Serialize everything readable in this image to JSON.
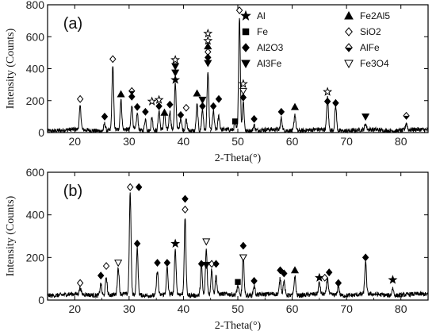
{
  "chart_data": [
    {
      "type": "line",
      "panel_label": "(a)",
      "xlabel": "2-Theta(°)",
      "ylabel": "Intensity (Counts)",
      "xlim": [
        15,
        85
      ],
      "ylim": [
        0,
        800
      ],
      "xticks": [
        20,
        30,
        40,
        50,
        60,
        70,
        80
      ],
      "yticks": [
        0,
        200,
        400,
        600,
        800
      ],
      "grid": false,
      "legend_position": "top-right",
      "legend": [
        {
          "name": "Al",
          "marker": "star-filled"
        },
        {
          "name": "Fe2Al5",
          "marker": "triangle-up"
        },
        {
          "name": "Fe",
          "marker": "square"
        },
        {
          "name": "SiO2",
          "marker": "diamond-open"
        },
        {
          "name": "Al2O3",
          "marker": "diamond-filled"
        },
        {
          "name": "AlFe",
          "marker": "diamond-half"
        },
        {
          "name": "Al3Fe",
          "marker": "triangle-down"
        },
        {
          "name": "Fe3O4",
          "marker": "triangle-down-open"
        }
      ],
      "baseline": 15,
      "peaks": [
        {
          "x": 21.0,
          "y": 160
        },
        {
          "x": 25.5,
          "y": 60
        },
        {
          "x": 27.0,
          "y": 420
        },
        {
          "x": 28.5,
          "y": 200
        },
        {
          "x": 30.5,
          "y": 175
        },
        {
          "x": 31.5,
          "y": 120
        },
        {
          "x": 33.0,
          "y": 90
        },
        {
          "x": 34.2,
          "y": 100
        },
        {
          "x": 35.5,
          "y": 140
        },
        {
          "x": 36.5,
          "y": 120
        },
        {
          "x": 37.5,
          "y": 130
        },
        {
          "x": 38.5,
          "y": 300
        },
        {
          "x": 39.5,
          "y": 90
        },
        {
          "x": 40.5,
          "y": 80
        },
        {
          "x": 42.5,
          "y": 180
        },
        {
          "x": 43.5,
          "y": 150
        },
        {
          "x": 44.5,
          "y": 380
        },
        {
          "x": 45.5,
          "y": 130
        },
        {
          "x": 46.5,
          "y": 100
        },
        {
          "x": 49.5,
          "y": 60
        },
        {
          "x": 50.3,
          "y": 730
        },
        {
          "x": 51.0,
          "y": 200
        },
        {
          "x": 53.0,
          "y": 50
        },
        {
          "x": 58.0,
          "y": 90
        },
        {
          "x": 60.5,
          "y": 120
        },
        {
          "x": 66.5,
          "y": 215
        },
        {
          "x": 68.0,
          "y": 170
        },
        {
          "x": 73.5,
          "y": 50
        },
        {
          "x": 81.0,
          "y": 60
        }
      ],
      "markers": [
        {
          "x": 21.0,
          "y": 210,
          "m": "diamond-open"
        },
        {
          "x": 25.5,
          "y": 100,
          "m": "diamond-filled"
        },
        {
          "x": 27.0,
          "y": 460,
          "m": "diamond-open"
        },
        {
          "x": 28.5,
          "y": 240,
          "m": "triangle-up"
        },
        {
          "x": 30.5,
          "y": 260,
          "m": "diamond-half"
        },
        {
          "x": 30.5,
          "y": 225,
          "m": "diamond-filled"
        },
        {
          "x": 31.5,
          "y": 160,
          "m": "diamond-filled"
        },
        {
          "x": 33.0,
          "y": 130,
          "m": "diamond-filled"
        },
        {
          "x": 34.2,
          "y": 195,
          "m": "star-open"
        },
        {
          "x": 35.5,
          "y": 205,
          "m": "star-open"
        },
        {
          "x": 35.5,
          "y": 165,
          "m": "diamond-filled"
        },
        {
          "x": 36.5,
          "y": 125,
          "m": "triangle-up"
        },
        {
          "x": 37.5,
          "y": 175,
          "m": "diamond-filled"
        },
        {
          "x": 38.5,
          "y": 455,
          "m": "star-open"
        },
        {
          "x": 38.5,
          "y": 415,
          "m": "triangle-down"
        },
        {
          "x": 38.5,
          "y": 375,
          "m": "triangle-down"
        },
        {
          "x": 38.5,
          "y": 330,
          "m": "star-filled"
        },
        {
          "x": 39.5,
          "y": 110,
          "m": "diamond-filled"
        },
        {
          "x": 40.5,
          "y": 155,
          "m": "diamond-open"
        },
        {
          "x": 42.5,
          "y": 245,
          "m": "triangle-up"
        },
        {
          "x": 43.5,
          "y": 205,
          "m": "triangle-down"
        },
        {
          "x": 43.5,
          "y": 165,
          "m": "diamond-filled"
        },
        {
          "x": 44.5,
          "y": 620,
          "m": "star-open"
        },
        {
          "x": 44.5,
          "y": 575,
          "m": "star-open"
        },
        {
          "x": 44.5,
          "y": 540,
          "m": "triangle-up"
        },
        {
          "x": 44.5,
          "y": 505,
          "m": "diamond-open"
        },
        {
          "x": 44.5,
          "y": 470,
          "m": "diamond-filled"
        },
        {
          "x": 44.5,
          "y": 435,
          "m": "triangle-down"
        },
        {
          "x": 45.5,
          "y": 165,
          "m": "diamond-filled"
        },
        {
          "x": 46.5,
          "y": 210,
          "m": "diamond-filled"
        },
        {
          "x": 49.5,
          "y": 70,
          "m": "square"
        },
        {
          "x": 50.3,
          "y": 765,
          "m": "diamond-open"
        },
        {
          "x": 51.0,
          "y": 305,
          "m": "star-open"
        },
        {
          "x": 51.0,
          "y": 260,
          "m": "triangle-down-open"
        },
        {
          "x": 51.0,
          "y": 220,
          "m": "diamond-filled"
        },
        {
          "x": 53.0,
          "y": 85,
          "m": "diamond-filled"
        },
        {
          "x": 58.0,
          "y": 130,
          "m": "diamond-filled"
        },
        {
          "x": 60.5,
          "y": 160,
          "m": "triangle-up"
        },
        {
          "x": 66.5,
          "y": 255,
          "m": "star-open"
        },
        {
          "x": 66.5,
          "y": 195,
          "m": "diamond-filled"
        },
        {
          "x": 68.0,
          "y": 185,
          "m": "diamond-filled"
        },
        {
          "x": 73.5,
          "y": 100,
          "m": "triangle-down"
        },
        {
          "x": 81.0,
          "y": 105,
          "m": "diamond-half"
        }
      ]
    },
    {
      "type": "line",
      "panel_label": "(b)",
      "xlabel": "2-Theta(°)",
      "ylabel": "Intensity (Counts)",
      "xlim": [
        15,
        85
      ],
      "ylim": [
        0,
        600
      ],
      "xticks": [
        20,
        30,
        40,
        50,
        60,
        70,
        80
      ],
      "yticks": [
        0,
        200,
        400,
        600
      ],
      "grid": false,
      "baseline": 25,
      "peaks": [
        {
          "x": 21.0,
          "y": 55
        },
        {
          "x": 24.8,
          "y": 80
        },
        {
          "x": 25.8,
          "y": 110
        },
        {
          "x": 28.0,
          "y": 150
        },
        {
          "x": 30.2,
          "y": 500
        },
        {
          "x": 31.5,
          "y": 240
        },
        {
          "x": 35.2,
          "y": 140
        },
        {
          "x": 37.0,
          "y": 150
        },
        {
          "x": 38.5,
          "y": 230
        },
        {
          "x": 40.3,
          "y": 385
        },
        {
          "x": 43.3,
          "y": 170
        },
        {
          "x": 44.2,
          "y": 240
        },
        {
          "x": 45.2,
          "y": 145
        },
        {
          "x": 46.0,
          "y": 110
        },
        {
          "x": 50.0,
          "y": 70
        },
        {
          "x": 51.0,
          "y": 210
        },
        {
          "x": 53.0,
          "y": 70
        },
        {
          "x": 57.8,
          "y": 100
        },
        {
          "x": 58.5,
          "y": 90
        },
        {
          "x": 60.5,
          "y": 115
        },
        {
          "x": 65.0,
          "y": 80
        },
        {
          "x": 66.5,
          "y": 100
        },
        {
          "x": 68.5,
          "y": 70
        },
        {
          "x": 73.5,
          "y": 175
        },
        {
          "x": 78.5,
          "y": 60
        }
      ],
      "markers": [
        {
          "x": 21.0,
          "y": 80,
          "m": "diamond-open"
        },
        {
          "x": 24.8,
          "y": 115,
          "m": "diamond-filled"
        },
        {
          "x": 25.8,
          "y": 160,
          "m": "diamond-open"
        },
        {
          "x": 28.0,
          "y": 175,
          "m": "triangle-down-open"
        },
        {
          "x": 30.2,
          "y": 530,
          "m": "diamond-open"
        },
        {
          "x": 31.8,
          "y": 530,
          "m": "diamond-filled"
        },
        {
          "x": 31.5,
          "y": 265,
          "m": "diamond-filled"
        },
        {
          "x": 35.2,
          "y": 175,
          "m": "diamond-filled"
        },
        {
          "x": 37.0,
          "y": 175,
          "m": "diamond-filled"
        },
        {
          "x": 38.5,
          "y": 265,
          "m": "star-filled"
        },
        {
          "x": 40.3,
          "y": 475,
          "m": "diamond-filled"
        },
        {
          "x": 40.3,
          "y": 425,
          "m": "diamond-open"
        },
        {
          "x": 43.3,
          "y": 170,
          "m": "diamond-filled"
        },
        {
          "x": 44.2,
          "y": 275,
          "m": "triangle-down-open"
        },
        {
          "x": 44.2,
          "y": 165,
          "m": "triangle-down"
        },
        {
          "x": 45.2,
          "y": 170,
          "m": "diamond-open"
        },
        {
          "x": 46.0,
          "y": 170,
          "m": "diamond-filled"
        },
        {
          "x": 50.0,
          "y": 85,
          "m": "square"
        },
        {
          "x": 51.0,
          "y": 255,
          "m": "diamond-filled"
        },
        {
          "x": 51.0,
          "y": 200,
          "m": "triangle-down-open"
        },
        {
          "x": 53.0,
          "y": 90,
          "m": "diamond-filled"
        },
        {
          "x": 57.8,
          "y": 140,
          "m": "diamond-filled"
        },
        {
          "x": 58.5,
          "y": 125,
          "m": "diamond-filled"
        },
        {
          "x": 60.5,
          "y": 140,
          "m": "triangle-up"
        },
        {
          "x": 65.0,
          "y": 105,
          "m": "star-filled"
        },
        {
          "x": 66.0,
          "y": 105,
          "m": "diamond-open"
        },
        {
          "x": 66.8,
          "y": 130,
          "m": "diamond-filled"
        },
        {
          "x": 68.5,
          "y": 80,
          "m": "diamond-filled"
        },
        {
          "x": 73.5,
          "y": 200,
          "m": "diamond-filled"
        },
        {
          "x": 78.5,
          "y": 95,
          "m": "star-filled"
        }
      ]
    }
  ]
}
